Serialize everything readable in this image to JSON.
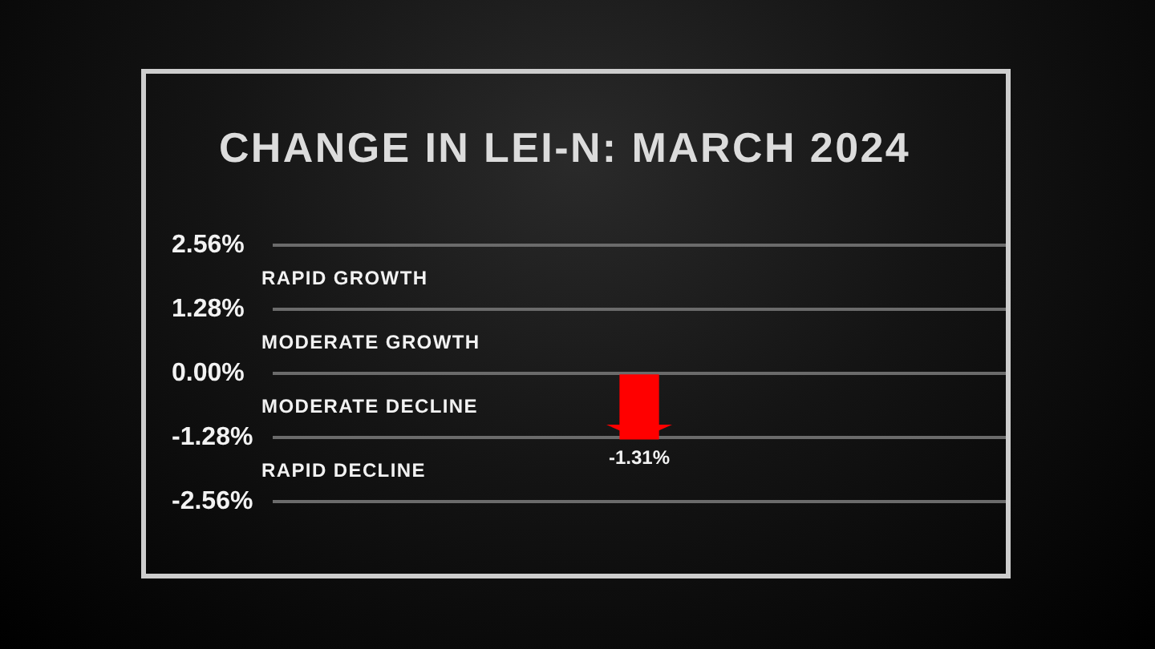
{
  "chart_data": {
    "type": "bar",
    "title": "CHANGE IN LEI-N: MARCH 2024",
    "categories": [
      null
    ],
    "values": [
      -1.31
    ],
    "color": "#ff0000",
    "value_labels": [
      "-1.31%"
    ],
    "ylim": [
      -2.56,
      2.56
    ],
    "yticks": [
      {
        "value": -2.56,
        "label": "-2.56%"
      },
      {
        "value": -1.28,
        "label": "-1.28%"
      },
      {
        "value": 0,
        "label": "0.00%"
      },
      {
        "value": 1.28,
        "label": "1.28%"
      },
      {
        "value": 2.56,
        "label": "2.56%"
      }
    ],
    "grid": "y",
    "annotations": [
      "RAPID GROWTH",
      "MODERATE GROWTH",
      "MODERATE DECLINE",
      "RAPID DECLINE"
    ]
  }
}
